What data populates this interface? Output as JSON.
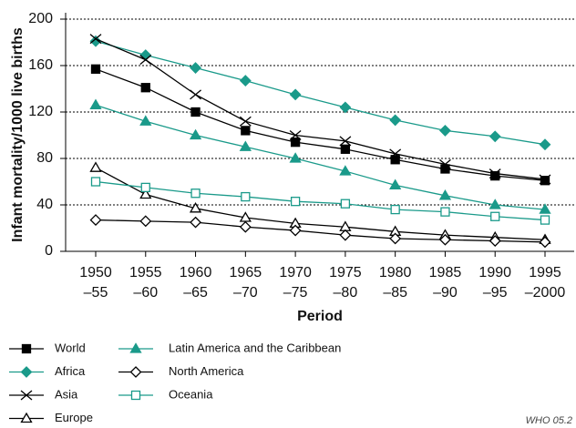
{
  "chart_data": {
    "type": "line",
    "y_label": "Infant mortality/1000 live births",
    "x_label": "Period",
    "source": "WHO 05.2",
    "categories": [
      [
        "1950",
        "–55"
      ],
      [
        "1955",
        "–60"
      ],
      [
        "1960",
        "–65"
      ],
      [
        "1965",
        "–70"
      ],
      [
        "1970",
        "–75"
      ],
      [
        "1975",
        "–80"
      ],
      [
        "1980",
        "–85"
      ],
      [
        "1985",
        "–90"
      ],
      [
        "1990",
        "–95"
      ],
      [
        "1995",
        "–2000"
      ]
    ],
    "ylim": [
      0,
      200
    ],
    "yticks": [
      0,
      40,
      80,
      120,
      160,
      200
    ],
    "grid": true,
    "series": [
      {
        "name": "World",
        "color": "#000000",
        "marker": "square-filled",
        "values": [
          157,
          141,
          120,
          104,
          94,
          88,
          79,
          71,
          65,
          61
        ]
      },
      {
        "name": "Africa",
        "color": "#1a9a8a",
        "marker": "diamond-filled",
        "values": [
          181,
          169,
          158,
          147,
          135,
          124,
          113,
          104,
          99,
          92
        ]
      },
      {
        "name": "Asia",
        "color": "#000000",
        "marker": "x",
        "values": [
          183,
          165,
          135,
          112,
          100,
          95,
          84,
          75,
          67,
          62
        ]
      },
      {
        "name": "Europe",
        "color": "#000000",
        "marker": "triangle-open",
        "values": [
          72,
          49,
          37,
          29,
          24,
          21,
          17,
          14,
          12,
          10
        ]
      },
      {
        "name": "Latin America and the Caribbean",
        "color": "#1a9a8a",
        "marker": "triangle-filled",
        "values": [
          126,
          112,
          100,
          90,
          80,
          69,
          57,
          48,
          40,
          36
        ]
      },
      {
        "name": "North America",
        "color": "#000000",
        "marker": "diamond-open",
        "values": [
          27,
          26,
          25,
          21,
          18,
          14,
          11,
          10,
          9,
          8
        ]
      },
      {
        "name": "Oceania",
        "color": "#1a9a8a",
        "marker": "square-open",
        "values": [
          60,
          55,
          50,
          47,
          43,
          41,
          36,
          34,
          30,
          27
        ]
      }
    ]
  }
}
